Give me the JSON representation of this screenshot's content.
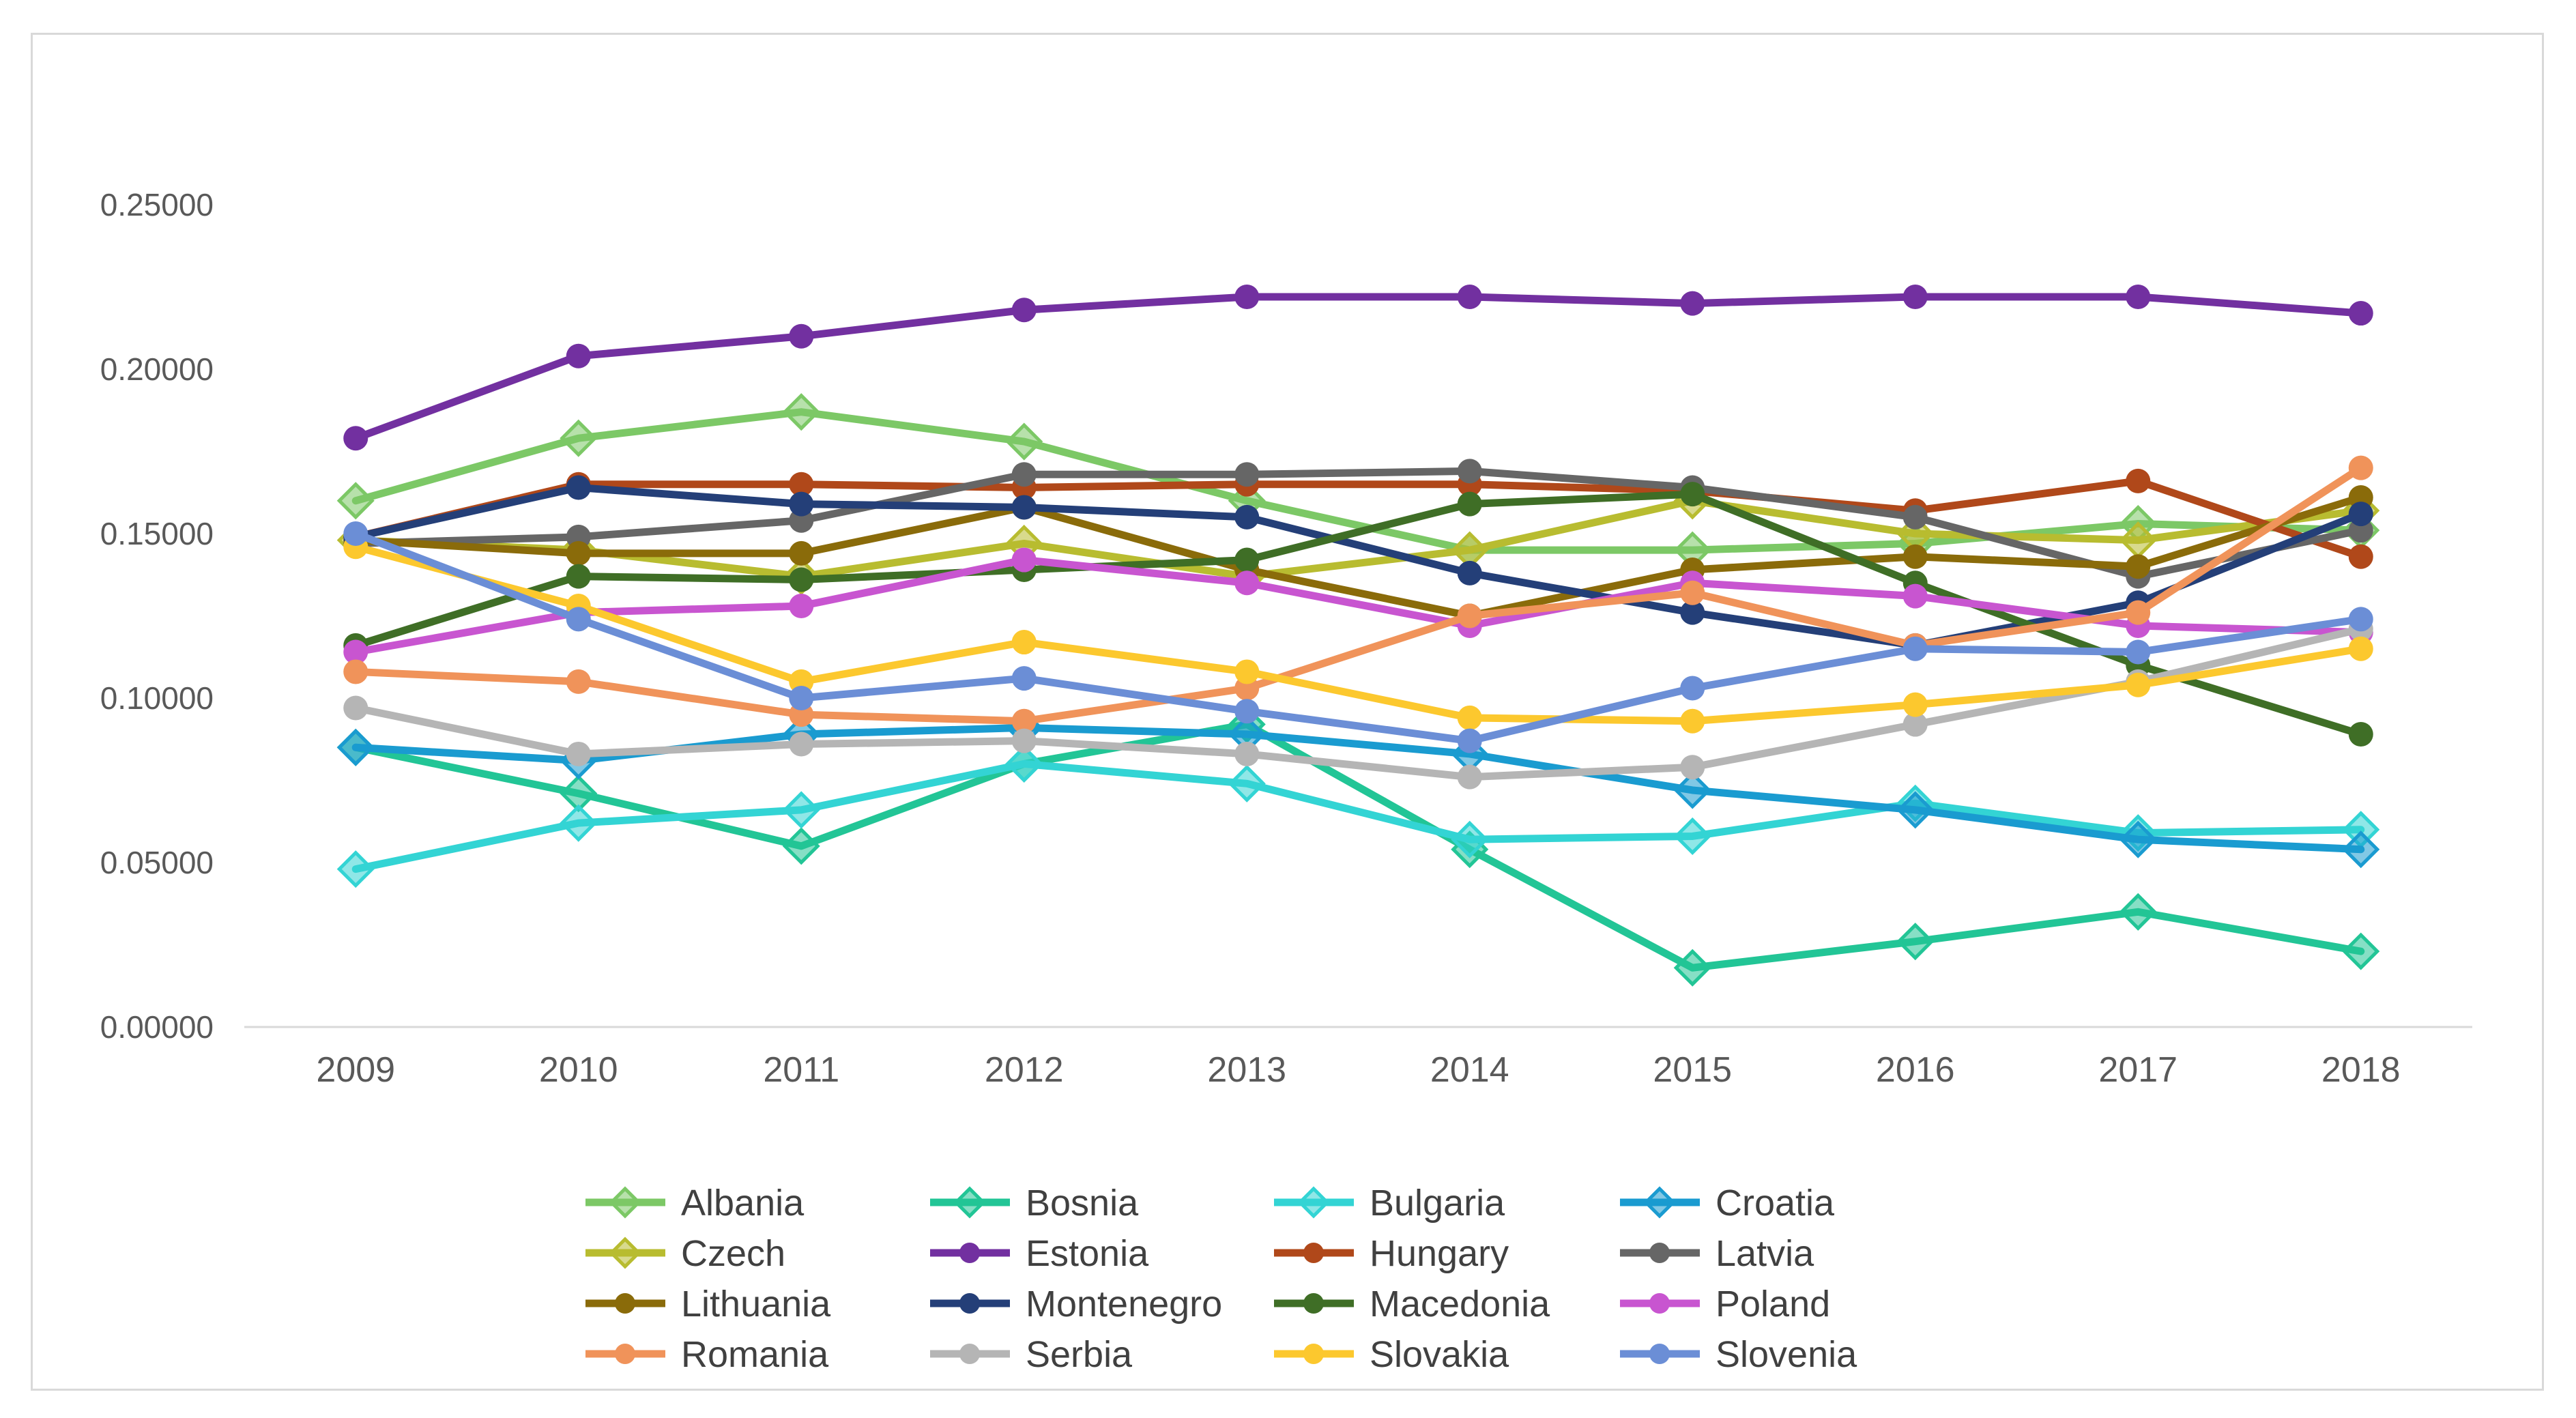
{
  "chart_data": {
    "type": "line",
    "title": "",
    "xlabel": "",
    "ylabel": "",
    "x": [
      "2009",
      "2010",
      "2011",
      "2012",
      "2013",
      "2014",
      "2015",
      "2016",
      "2017",
      "2018"
    ],
    "ylim": [
      0,
      0.25
    ],
    "yticks": [
      "0.00000",
      "0.05000",
      "0.10000",
      "0.15000",
      "0.20000",
      "0.25000"
    ],
    "yticks_values": [
      0,
      0.05,
      0.1,
      0.15,
      0.2,
      0.25
    ],
    "grid": false,
    "legend_position": "bottom",
    "series": [
      {
        "name": "Albania",
        "marker": "diamond",
        "color": "#7cc866",
        "values": [
          0.16,
          0.179,
          0.187,
          0.178,
          0.16,
          0.145,
          0.145,
          0.147,
          0.153,
          0.151
        ]
      },
      {
        "name": "Bosnia",
        "marker": "diamond",
        "color": "#22c596",
        "values": [
          0.085,
          0.071,
          0.055,
          0.08,
          0.092,
          0.054,
          0.018,
          0.026,
          0.035,
          0.023
        ]
      },
      {
        "name": "Bulgaria",
        "marker": "diamond",
        "color": "#33d4d4",
        "values": [
          0.048,
          0.062,
          0.066,
          0.08,
          0.074,
          0.057,
          0.058,
          0.068,
          0.059,
          0.06
        ]
      },
      {
        "name": "Croatia",
        "marker": "diamond",
        "color": "#1a9bd0",
        "values": [
          0.085,
          0.081,
          0.089,
          0.091,
          0.089,
          0.083,
          0.072,
          0.066,
          0.057,
          0.054
        ]
      },
      {
        "name": "Czech",
        "marker": "diamond",
        "color": "#b8bc30",
        "values": [
          0.148,
          0.145,
          0.137,
          0.147,
          0.137,
          0.145,
          0.16,
          0.15,
          0.148,
          0.157
        ]
      },
      {
        "name": "Estonia",
        "marker": "circle",
        "color": "#7230a0",
        "values": [
          0.179,
          0.204,
          0.21,
          0.218,
          0.222,
          0.222,
          0.22,
          0.222,
          0.222,
          0.217
        ]
      },
      {
        "name": "Hungary",
        "marker": "circle",
        "color": "#b0481a",
        "values": [
          0.149,
          0.165,
          0.165,
          0.164,
          0.165,
          0.165,
          0.163,
          0.157,
          0.166,
          0.143
        ]
      },
      {
        "name": "Latvia",
        "marker": "circle",
        "color": "#666666",
        "values": [
          0.147,
          0.149,
          0.154,
          0.168,
          0.168,
          0.169,
          0.164,
          0.155,
          0.137,
          0.151
        ]
      },
      {
        "name": "Lithuania",
        "marker": "circle",
        "color": "#8a6b0a",
        "values": [
          0.148,
          0.144,
          0.144,
          0.158,
          0.139,
          0.125,
          0.139,
          0.143,
          0.14,
          0.161
        ]
      },
      {
        "name": "Montenegro",
        "marker": "circle",
        "color": "#243f78",
        "values": [
          0.149,
          0.164,
          0.159,
          0.158,
          0.155,
          0.138,
          0.126,
          0.116,
          0.129,
          0.156
        ]
      },
      {
        "name": "Macedonia",
        "marker": "circle",
        "color": "#3f6e26",
        "values": [
          0.116,
          0.137,
          0.136,
          0.139,
          0.142,
          0.159,
          0.162,
          0.135,
          0.11,
          0.089
        ]
      },
      {
        "name": "Poland",
        "marker": "circle",
        "color": "#c855d0",
        "values": [
          0.114,
          0.126,
          0.128,
          0.142,
          0.135,
          0.122,
          0.135,
          0.131,
          0.122,
          0.12
        ]
      },
      {
        "name": "Romania",
        "marker": "circle",
        "color": "#f0935a",
        "values": [
          0.108,
          0.105,
          0.095,
          0.093,
          0.103,
          0.125,
          0.132,
          0.116,
          0.126,
          0.17
        ]
      },
      {
        "name": "Serbia",
        "marker": "circle",
        "color": "#b5b5b5",
        "values": [
          0.097,
          0.083,
          0.086,
          0.087,
          0.083,
          0.076,
          0.079,
          0.092,
          0.105,
          0.121
        ]
      },
      {
        "name": "Slovakia",
        "marker": "circle",
        "color": "#fcc82e",
        "values": [
          0.146,
          0.128,
          0.105,
          0.117,
          0.108,
          0.094,
          0.093,
          0.098,
          0.104,
          0.115
        ]
      },
      {
        "name": "Slovenia",
        "marker": "circle",
        "color": "#6b8ed6",
        "values": [
          0.15,
          0.124,
          0.1,
          0.106,
          0.096,
          0.087,
          0.103,
          0.115,
          0.114,
          0.124
        ]
      }
    ]
  }
}
